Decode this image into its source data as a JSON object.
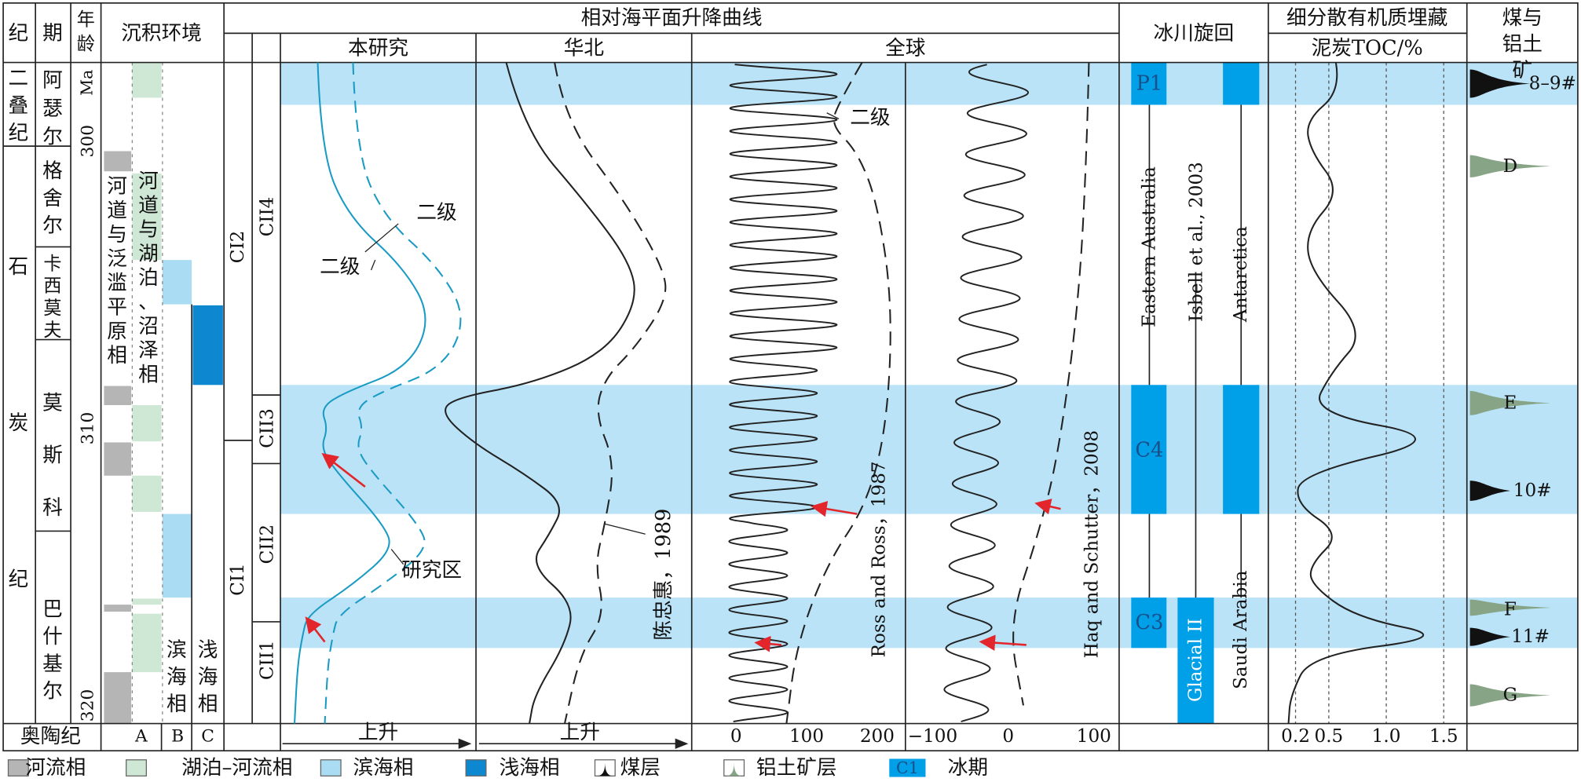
{
  "header": {
    "period": "纪",
    "stage": "期",
    "age": "年龄",
    "environment": "沉积环境",
    "sea_level": "相对海平面升降曲线",
    "glacial": "冰川旋回",
    "organic": "细分散有机质埋藏",
    "deposits": "煤与铝土矿"
  },
  "subheader": {
    "this_study": "本研究",
    "north_china": "华北",
    "global": "全球",
    "toc": "泥炭TOC/%"
  },
  "periods": [
    "二叠纪",
    "石炭纪",
    "奥陶纪"
  ],
  "stages": [
    "阿瑟尔",
    "格舍尔",
    "卡西莫夫",
    "莫斯科",
    "巴什基尔"
  ],
  "age": {
    "unit": "Ma",
    "ticks": [
      "300",
      "310",
      "320"
    ]
  },
  "environment": {
    "facies": [
      "河道与泛滥平原相",
      "河道与湖泊、沼泽相",
      "滨海相",
      "浅海相"
    ],
    "columns": [
      "A",
      "B",
      "C"
    ]
  },
  "sequences": [
    "CI2",
    "CI1",
    "CII4",
    "CII3",
    "CII2",
    "CII1"
  ],
  "this_study": {
    "labels": [
      "二级",
      "二级",
      "研究区"
    ],
    "rise": "上升"
  },
  "north_china": {
    "source": "陈忠惠，1989",
    "rise": "上升"
  },
  "global": {
    "label": "二级",
    "sources": [
      "Ross and Ross，1987",
      "Haq and Schutter，2008"
    ],
    "ticks_left": [
      "0",
      "100",
      "200"
    ],
    "ticks_right": [
      "−100",
      "0",
      "100"
    ]
  },
  "glacial": {
    "stages": [
      "P1",
      "C4",
      "C3"
    ],
    "regions": [
      "Eastern Australia",
      "Isbell et al., 2003",
      "Antarctica",
      "Glacial II",
      "Saudi Arabia"
    ]
  },
  "toc": {
    "ticks": [
      "0.2",
      "0.5",
      "1.0",
      "1.5"
    ]
  },
  "deposits": [
    "8–9#",
    "D",
    "E",
    "10#",
    "F",
    "11#",
    "G"
  ],
  "legend": [
    "河流相",
    "湖泊–河流相",
    "滨海相",
    "浅海相",
    "煤层",
    "铝土矿层",
    "冰期"
  ],
  "legend_icon": "C1"
}
